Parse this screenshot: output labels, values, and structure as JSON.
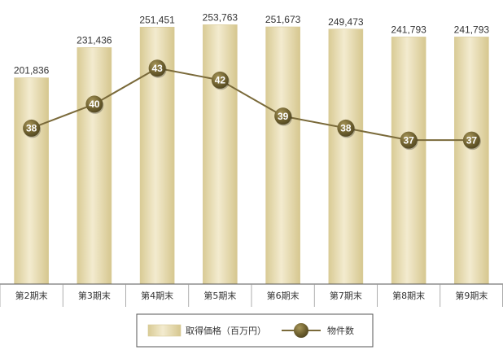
{
  "chart_data": {
    "type": "bar",
    "categories": [
      "第2期末",
      "第3期末",
      "第4期末",
      "第5期末",
      "第6期末",
      "第7期末",
      "第8期末",
      "第9期末"
    ],
    "series": [
      {
        "name": "取得価格（百万円）",
        "type": "bar",
        "axis": "left",
        "values": [
          201836,
          231436,
          251451,
          253763,
          251673,
          249473,
          241793,
          241793
        ],
        "labels": [
          "201,836",
          "231,436",
          "251,451",
          "253,763",
          "251,673",
          "249,473",
          "241,793",
          "241,793"
        ],
        "color": "#e4d7aa"
      },
      {
        "name": "物件数",
        "type": "line",
        "axis": "right",
        "values": [
          38,
          40,
          43,
          42,
          39,
          38,
          37,
          37
        ],
        "labels": [
          "38",
          "40",
          "43",
          "42",
          "39",
          "38",
          "37",
          "37"
        ],
        "color": "#7a6a3a"
      }
    ],
    "bar_axis_range": [
      0,
      270000
    ],
    "line_axis_range": [
      25,
      48
    ],
    "grid": false,
    "legend_position": "bottom-center",
    "colors": {
      "bar_edge": "#d8ca97",
      "bar_light": "#f2eacd",
      "line": "#7a6a3a",
      "marker": "#6b5d2e",
      "axis": "#555555"
    }
  }
}
